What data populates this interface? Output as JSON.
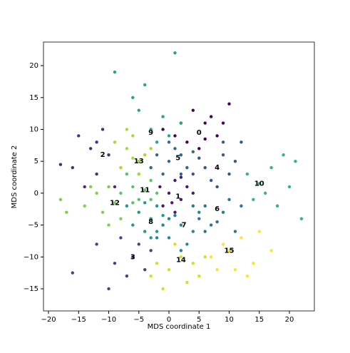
{
  "chart_data": {
    "type": "scatter",
    "xlabel": "MDS coordinate 1",
    "ylabel": "MDS coordinate 2",
    "xlim": [
      -20.83,
      24.14
    ],
    "ylim": [
      -18.47,
      23.7
    ],
    "xticks": [
      {
        "value": -20,
        "label": "−20"
      },
      {
        "value": -15,
        "label": "−15"
      },
      {
        "value": -10,
        "label": "−10"
      },
      {
        "value": -5,
        "label": "−5"
      },
      0,
      5,
      10,
      15,
      20
    ],
    "yticks": [
      {
        "value": -15,
        "label": "−15"
      },
      {
        "value": -10,
        "label": "−10"
      },
      {
        "value": -5,
        "label": "−5"
      },
      0,
      5,
      10,
      15,
      20
    ],
    "series": [
      {
        "color": "#440154",
        "x": [
          4,
          2,
          6,
          8,
          3,
          5,
          7,
          1,
          9,
          6,
          -1,
          10
        ],
        "y": [
          13,
          11,
          11,
          9,
          8,
          7,
          12,
          9,
          11,
          8.5,
          10,
          14
        ]
      },
      {
        "color": "#481a6c",
        "x": [
          0,
          1,
          2,
          -1,
          3,
          0.5,
          4,
          -1.5,
          2,
          1
        ],
        "y": [
          0,
          2,
          -1,
          -2,
          1,
          -1.5,
          0,
          1,
          2.5,
          -3
        ]
      },
      {
        "color": "#472f7d",
        "x": [
          -16,
          -15,
          -13,
          -12,
          -11,
          -10,
          -9,
          -14,
          -12,
          -18
        ],
        "y": [
          4,
          9,
          7,
          3,
          10,
          6,
          1,
          1,
          8,
          4.5
        ]
      },
      {
        "color": "#414487",
        "x": [
          -6,
          -8,
          -4,
          -9,
          -5,
          -16,
          -10,
          -7,
          -3,
          -12
        ],
        "y": [
          -10,
          -7,
          -12,
          -11,
          -8,
          -12.5,
          -15,
          -13,
          -9,
          -8
        ]
      },
      {
        "color": "#39568c",
        "x": [
          6,
          9,
          10,
          7,
          11,
          5,
          8,
          12,
          9,
          4
        ],
        "y": [
          4,
          6,
          3,
          2,
          5,
          5.5,
          1,
          8,
          8,
          3
        ]
      },
      {
        "color": "#31688e",
        "x": [
          0,
          2,
          -1,
          3,
          1,
          -2,
          4,
          0,
          2,
          -3
        ],
        "y": [
          5,
          6,
          3,
          4,
          7,
          6,
          6.5,
          8,
          3,
          4
        ]
      },
      {
        "color": "#2a788e",
        "x": [
          6,
          9,
          7,
          10,
          5,
          11,
          8,
          12,
          6,
          4
        ],
        "y": [
          -2,
          -3,
          -5,
          -1,
          -4,
          -6,
          -4.5,
          -2,
          -6,
          -2
        ]
      },
      {
        "color": "#23888e",
        "x": [
          2,
          0,
          4,
          1,
          -1,
          3,
          5,
          -2,
          2,
          0
        ],
        "y": [
          -5,
          -7,
          -6,
          -3.5,
          -5,
          -8,
          -3,
          -7,
          -9,
          -4
        ]
      },
      {
        "color": "#1f988b",
        "x": [
          -3,
          -5,
          -2,
          -4,
          -6,
          -1,
          -3,
          -7,
          -4,
          -2
        ],
        "y": [
          -4,
          -3,
          -2,
          -6,
          -5,
          -3.5,
          -7,
          -2,
          -1.5,
          -6
        ]
      },
      {
        "color": "#22a884",
        "x": [
          -3,
          -1,
          -5,
          -2,
          0,
          -6,
          1,
          -9,
          -4,
          2
        ],
        "y": [
          10,
          12,
          13,
          8,
          9,
          15,
          22,
          19,
          17,
          11
        ]
      },
      {
        "color": "#35b779",
        "x": [
          15,
          17,
          14,
          19,
          21,
          18,
          22,
          16,
          13,
          20
        ],
        "y": [
          1.5,
          4,
          -1,
          6,
          5,
          -2,
          -4,
          0,
          3,
          1
        ]
      },
      {
        "color": "#54c568",
        "x": [
          -4,
          -6,
          -3,
          -5,
          -7,
          -2,
          -5,
          -8,
          -3,
          -6
        ],
        "y": [
          0.5,
          1,
          2,
          -1,
          3,
          0,
          3,
          0,
          -1,
          -1.5
        ]
      },
      {
        "color": "#7ad151",
        "x": [
          -9,
          -11,
          -12,
          -10,
          -8,
          -14,
          -17,
          -18,
          -10,
          -13
        ],
        "y": [
          -1.5,
          -3,
          0,
          1,
          -4,
          -2,
          -3,
          -1,
          -5,
          1
        ]
      },
      {
        "color": "#a5db36",
        "x": [
          -5,
          -7,
          -4,
          -6,
          -8,
          -3,
          -7,
          -5,
          -9,
          -6
        ],
        "y": [
          5,
          7,
          6,
          9,
          4,
          7,
          10,
          3,
          8,
          5.5
        ]
      },
      {
        "color": "#d2e21b",
        "x": [
          2,
          0,
          4,
          -2,
          3,
          -1,
          5,
          -3,
          1,
          6
        ],
        "y": [
          -10,
          -12,
          -11,
          -11,
          -14,
          -15,
          -13,
          -13,
          -8,
          -10
        ]
      },
      {
        "color": "#fde725",
        "x": [
          10,
          12,
          8,
          14,
          11,
          9,
          15,
          17,
          13,
          7
        ],
        "y": [
          -9,
          -7,
          -12,
          -11,
          -12,
          -8,
          -6,
          -9,
          -13,
          -10
        ]
      }
    ],
    "annotations": [
      {
        "text": "0",
        "x": 5,
        "y": 9.5
      },
      {
        "text": "1",
        "x": 1.5,
        "y": -0.5
      },
      {
        "text": "2",
        "x": -11,
        "y": 6
      },
      {
        "text": "3",
        "x": -6,
        "y": -10
      },
      {
        "text": "4",
        "x": 8,
        "y": 4
      },
      {
        "text": "5",
        "x": 1.5,
        "y": 5.5
      },
      {
        "text": "6",
        "x": 8,
        "y": -2.5
      },
      {
        "text": "7",
        "x": 2.5,
        "y": -5
      },
      {
        "text": "8",
        "x": -3,
        "y": -4.5
      },
      {
        "text": "9",
        "x": -3,
        "y": 9.5
      },
      {
        "text": "10",
        "x": 15,
        "y": 1.5
      },
      {
        "text": "11",
        "x": -4,
        "y": 0.5
      },
      {
        "text": "12",
        "x": -9,
        "y": -1.5
      },
      {
        "text": "13",
        "x": -5,
        "y": 5
      },
      {
        "text": "14",
        "x": 2,
        "y": -10.5
      },
      {
        "text": "15",
        "x": 10,
        "y": -9
      }
    ]
  }
}
